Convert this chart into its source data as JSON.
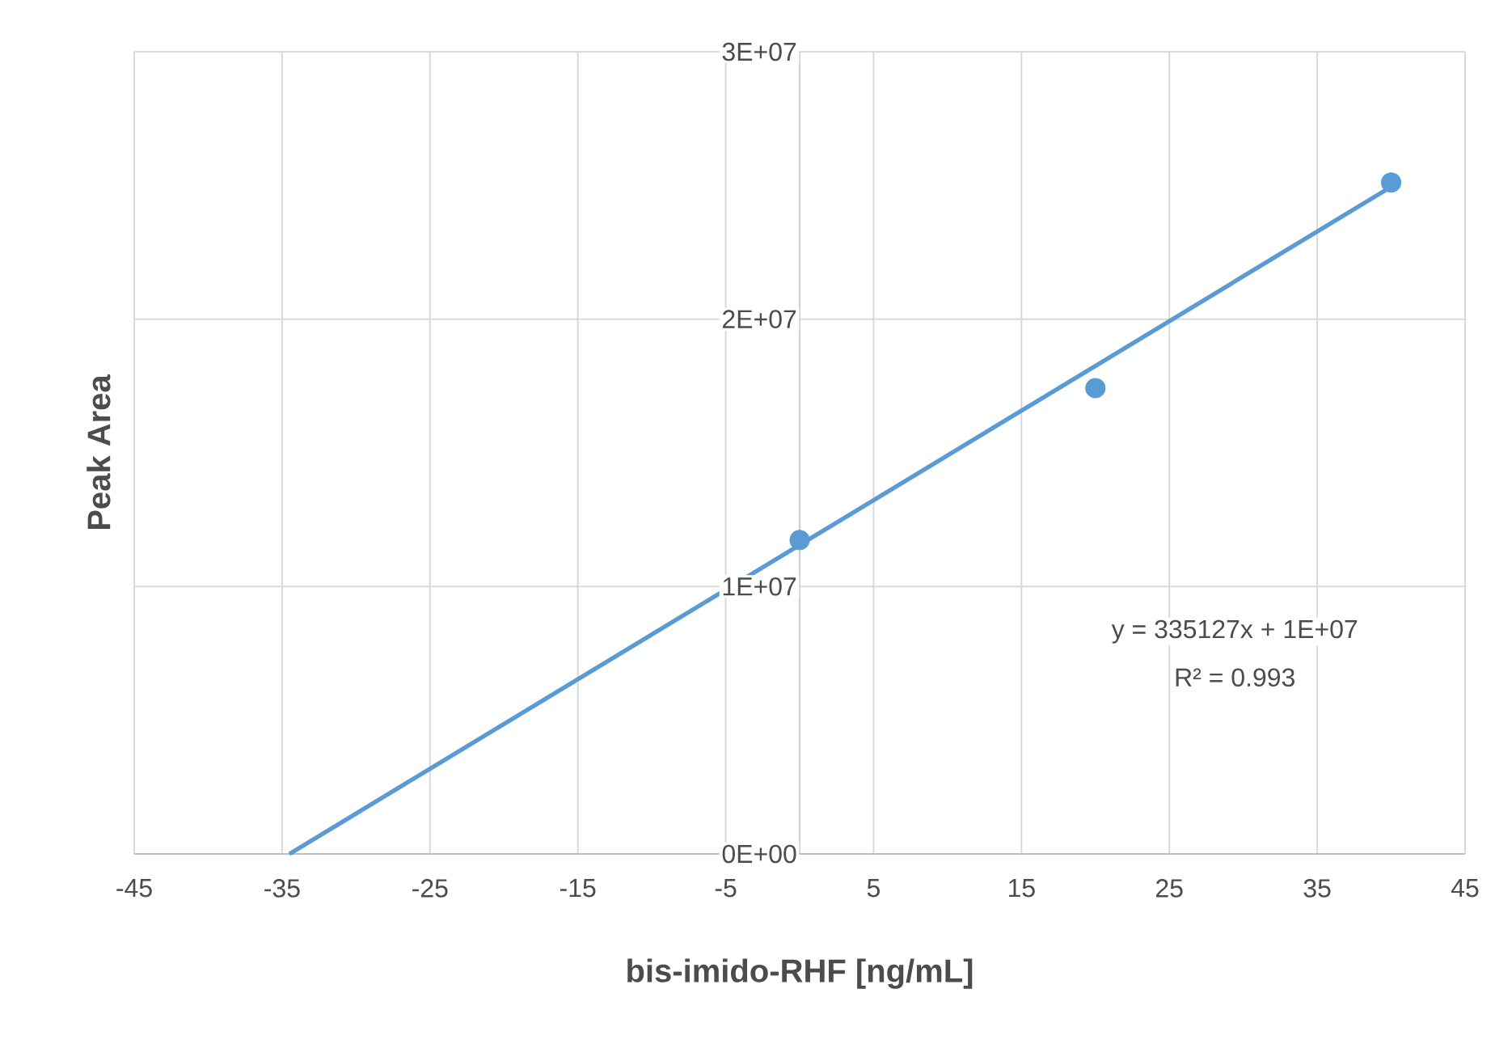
{
  "chart_data": {
    "type": "scatter",
    "xlabel": "bis-imido-RHF [ng/mL]",
    "ylabel": "Peak Area",
    "series": [
      {
        "type": "scatter",
        "color": "#5b9bd5",
        "marker": "circle",
        "x": [
          0,
          20,
          40
        ],
        "values": [
          11740000,
          17420000,
          25110000
        ]
      },
      {
        "type": "line",
        "color": "#5b9bd5",
        "marker": "none",
        "line_style": "solid",
        "x": [
          -34.5,
          40
        ],
        "values": [
          0,
          24950000
        ]
      }
    ],
    "xlim": [
      -45,
      45
    ],
    "xticks": [
      -45,
      -35,
      -25,
      -15,
      -5,
      5,
      15,
      25,
      35,
      45
    ],
    "ylim": [
      0,
      30000000
    ],
    "yticks": [
      {
        "value": 0,
        "label": "0E+00"
      },
      {
        "value": 10000000,
        "label": "1E+07"
      },
      {
        "value": 20000000,
        "label": "2E+07"
      },
      {
        "value": 30000000,
        "label": "3E+07"
      }
    ],
    "grid": true,
    "annotations": [
      "y = 335127x + 1E+07",
      "R² = 0.993"
    ]
  }
}
